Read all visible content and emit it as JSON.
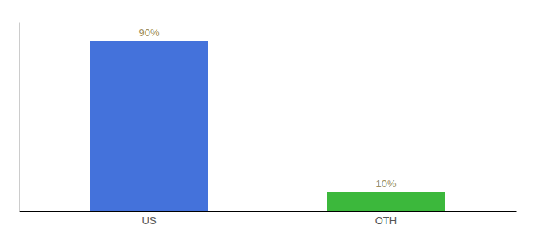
{
  "chart_data": {
    "type": "bar",
    "categories": [
      "US",
      "OTH"
    ],
    "values": [
      90,
      10
    ],
    "value_labels": [
      "90%",
      "10%"
    ],
    "colors": [
      "#4472db",
      "#3cb83c"
    ],
    "ylim": [
      0,
      100
    ],
    "tick_labels": "x"
  }
}
